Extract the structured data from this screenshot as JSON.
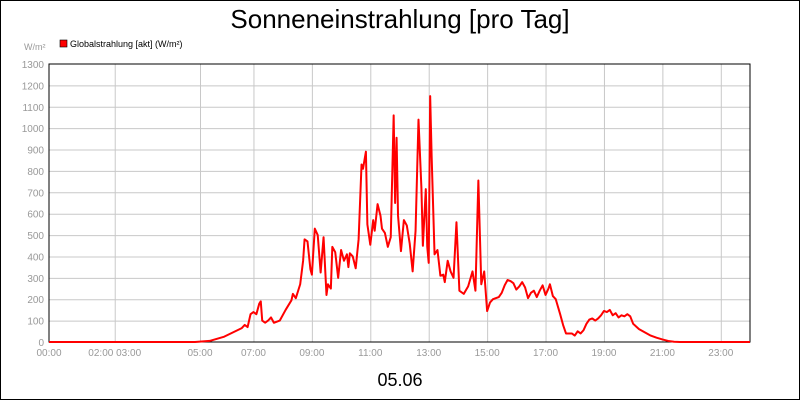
{
  "chart_data": {
    "type": "line",
    "title": "Sonneneinstrahlung [pro Tag]",
    "unit_label": "W/m²",
    "xlabel": "05.06",
    "ylim": [
      0,
      1300
    ],
    "yticks": [
      0,
      100,
      200,
      300,
      400,
      500,
      600,
      700,
      800,
      900,
      1000,
      1100,
      1200,
      1300
    ],
    "xlim": [
      0,
      24
    ],
    "xticks": [
      {
        "x": 0,
        "label": "00:00"
      },
      {
        "x": 2.25,
        "label": "02:00 03:00"
      },
      {
        "x": 5.17,
        "label": "05:00"
      },
      {
        "x": 7,
        "label": "07:00"
      },
      {
        "x": 9,
        "label": "09:00"
      },
      {
        "x": 11,
        "label": "11:00"
      },
      {
        "x": 13,
        "label": "13:00"
      },
      {
        "x": 15,
        "label": "15:00"
      },
      {
        "x": 17,
        "label": "17:00"
      },
      {
        "x": 19,
        "label": "19:00"
      },
      {
        "x": 21,
        "label": "21:00"
      },
      {
        "x": 23,
        "label": "23:00"
      }
    ],
    "grid": true,
    "legend_position": "top-left",
    "series": [
      {
        "name": "Globalstrahlung [akt] (W/m²)",
        "color": "#ff0000",
        "points": [
          [
            0,
            0
          ],
          [
            5.0,
            0
          ],
          [
            5.5,
            5
          ],
          [
            6.0,
            25
          ],
          [
            6.3,
            45
          ],
          [
            6.6,
            65
          ],
          [
            6.7,
            80
          ],
          [
            6.8,
            70
          ],
          [
            6.9,
            130
          ],
          [
            7.0,
            140
          ],
          [
            7.1,
            130
          ],
          [
            7.2,
            180
          ],
          [
            7.25,
            190
          ],
          [
            7.3,
            100
          ],
          [
            7.4,
            90
          ],
          [
            7.5,
            100
          ],
          [
            7.6,
            115
          ],
          [
            7.7,
            90
          ],
          [
            7.8,
            95
          ],
          [
            7.9,
            100
          ],
          [
            8.1,
            150
          ],
          [
            8.3,
            195
          ],
          [
            8.35,
            225
          ],
          [
            8.45,
            205
          ],
          [
            8.6,
            270
          ],
          [
            8.7,
            380
          ],
          [
            8.75,
            480
          ],
          [
            8.85,
            470
          ],
          [
            8.95,
            340
          ],
          [
            9.0,
            315
          ],
          [
            9.1,
            530
          ],
          [
            9.2,
            500
          ],
          [
            9.3,
            325
          ],
          [
            9.4,
            490
          ],
          [
            9.5,
            220
          ],
          [
            9.55,
            270
          ],
          [
            9.65,
            250
          ],
          [
            9.7,
            445
          ],
          [
            9.8,
            420
          ],
          [
            9.9,
            300
          ],
          [
            10.0,
            430
          ],
          [
            10.1,
            380
          ],
          [
            10.2,
            410
          ],
          [
            10.25,
            350
          ],
          [
            10.3,
            415
          ],
          [
            10.4,
            400
          ],
          [
            10.5,
            345
          ],
          [
            10.6,
            480
          ],
          [
            10.7,
            830
          ],
          [
            10.75,
            810
          ],
          [
            10.85,
            890
          ],
          [
            10.9,
            550
          ],
          [
            11.0,
            455
          ],
          [
            11.1,
            570
          ],
          [
            11.15,
            520
          ],
          [
            11.25,
            645
          ],
          [
            11.35,
            590
          ],
          [
            11.4,
            530
          ],
          [
            11.5,
            510
          ],
          [
            11.6,
            445
          ],
          [
            11.7,
            490
          ],
          [
            11.8,
            1060
          ],
          [
            11.85,
            650
          ],
          [
            11.9,
            955
          ],
          [
            11.95,
            590
          ],
          [
            12.05,
            425
          ],
          [
            12.15,
            570
          ],
          [
            12.25,
            545
          ],
          [
            12.35,
            460
          ],
          [
            12.45,
            330
          ],
          [
            12.55,
            520
          ],
          [
            12.65,
            1040
          ],
          [
            12.75,
            720
          ],
          [
            12.8,
            450
          ],
          [
            12.9,
            715
          ],
          [
            12.95,
            445
          ],
          [
            13.0,
            370
          ],
          [
            13.05,
            1150
          ],
          [
            13.1,
            870
          ],
          [
            13.2,
            410
          ],
          [
            13.3,
            430
          ],
          [
            13.4,
            310
          ],
          [
            13.5,
            315
          ],
          [
            13.55,
            280
          ],
          [
            13.65,
            380
          ],
          [
            13.75,
            330
          ],
          [
            13.85,
            300
          ],
          [
            13.95,
            560
          ],
          [
            14.05,
            240
          ],
          [
            14.2,
            225
          ],
          [
            14.35,
            260
          ],
          [
            14.5,
            330
          ],
          [
            14.6,
            240
          ],
          [
            14.7,
            755
          ],
          [
            14.8,
            270
          ],
          [
            14.9,
            330
          ],
          [
            15.0,
            145
          ],
          [
            15.1,
            185
          ],
          [
            15.2,
            200
          ],
          [
            15.4,
            210
          ],
          [
            15.5,
            230
          ],
          [
            15.6,
            265
          ],
          [
            15.7,
            290
          ],
          [
            15.8,
            285
          ],
          [
            15.9,
            275
          ],
          [
            16.0,
            245
          ],
          [
            16.1,
            260
          ],
          [
            16.2,
            280
          ],
          [
            16.3,
            255
          ],
          [
            16.4,
            205
          ],
          [
            16.5,
            230
          ],
          [
            16.6,
            240
          ],
          [
            16.7,
            210
          ],
          [
            16.8,
            240
          ],
          [
            16.9,
            265
          ],
          [
            17.0,
            220
          ],
          [
            17.1,
            250
          ],
          [
            17.15,
            270
          ],
          [
            17.25,
            215
          ],
          [
            17.35,
            200
          ],
          [
            17.5,
            130
          ],
          [
            17.6,
            80
          ],
          [
            17.7,
            40
          ],
          [
            17.9,
            40
          ],
          [
            18.0,
            30
          ],
          [
            18.1,
            50
          ],
          [
            18.2,
            40
          ],
          [
            18.3,
            55
          ],
          [
            18.4,
            85
          ],
          [
            18.5,
            105
          ],
          [
            18.6,
            110
          ],
          [
            18.7,
            100
          ],
          [
            18.8,
            110
          ],
          [
            18.9,
            125
          ],
          [
            19.0,
            145
          ],
          [
            19.1,
            140
          ],
          [
            19.2,
            150
          ],
          [
            19.3,
            125
          ],
          [
            19.4,
            135
          ],
          [
            19.5,
            115
          ],
          [
            19.6,
            125
          ],
          [
            19.7,
            120
          ],
          [
            19.8,
            130
          ],
          [
            19.9,
            120
          ],
          [
            20.0,
            85
          ],
          [
            20.2,
            60
          ],
          [
            20.4,
            45
          ],
          [
            20.6,
            30
          ],
          [
            20.8,
            20
          ],
          [
            21.0,
            12
          ],
          [
            21.2,
            5
          ],
          [
            21.4,
            1
          ],
          [
            21.6,
            0
          ],
          [
            24.0,
            0
          ]
        ]
      }
    ]
  }
}
